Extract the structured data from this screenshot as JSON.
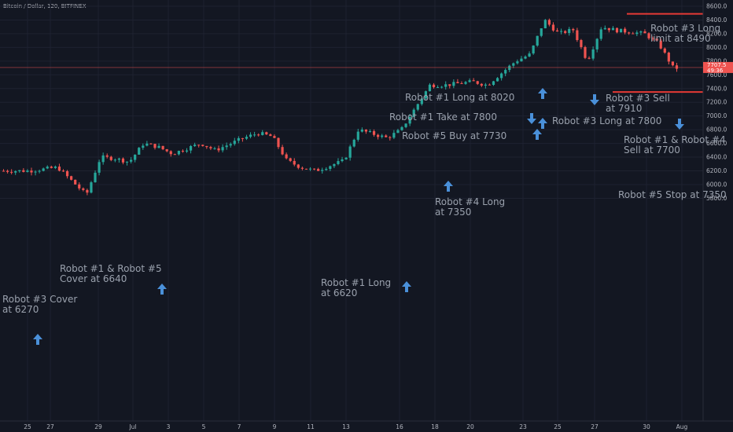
{
  "header": {
    "symbol_line": "Bitcoin / Dollar, 120, BITFINEX"
  },
  "price_axis": {
    "labels": [
      "8600.0",
      "8400.0",
      "8200.0",
      "8000.0",
      "7800.0",
      "7600.0",
      "7400.0",
      "7200.0",
      "7000.0",
      "6800.0",
      "6600.0",
      "6400.0",
      "6200.0",
      "6000.0",
      "5800.0"
    ],
    "current_price": "7707.5",
    "countdown": "49:36"
  },
  "time_axis": {
    "labels": [
      "25",
      "27",
      "29",
      "Jul",
      "3",
      "5",
      "7",
      "9",
      "11",
      "13",
      "16",
      "18",
      "20",
      "23",
      "25",
      "27",
      "30",
      "Aug"
    ]
  },
  "annotations": {
    "a1": "Robot #3 Long\nlimit at 8490",
    "a2": "Robot #1 Long at 8020",
    "a3": "Robot #3 Sell\nat 7910",
    "a4": "Robot #1 Take at 7800",
    "a5": "Robot #3 Long at 7800",
    "a6": "Robot #5 Buy at 7730",
    "a7": "Robot #1 & Robot #4\nSell at 7700",
    "a8": "Robot #4 Long\nat 7350",
    "a9": "Robot #5 Stop at 7350",
    "a10": "Robot #1 & Robot #5\nCover at 6640",
    "a11": "Robot #1 Long\nat 6620",
    "a12": "Robot #3 Cover\nat 6270"
  },
  "chart_data": {
    "type": "candlestick",
    "symbol": "Bitcoin / Dollar",
    "interval": "120",
    "exchange": "BITFINEX",
    "ylim": [
      5700,
      8650
    ],
    "current_price": 7707.5,
    "anchors": [
      [
        25,
        6200
      ],
      [
        27,
        6250
      ],
      [
        29,
        5850
      ],
      [
        30,
        6400
      ],
      [
        31,
        6380
      ],
      [
        32,
        6330
      ],
      [
        33,
        6600
      ],
      [
        34,
        6550
      ],
      [
        35,
        6450
      ],
      [
        37,
        6600
      ],
      [
        38,
        6500
      ],
      [
        40,
        6680
      ],
      [
        41,
        6750
      ],
      [
        42,
        6700
      ],
      [
        43,
        6350
      ],
      [
        44,
        6250
      ],
      [
        45,
        6200
      ],
      [
        47,
        6350
      ],
      [
        48,
        6800
      ],
      [
        50,
        6680
      ],
      [
        51,
        6800
      ],
      [
        53,
        7450
      ],
      [
        54,
        7450
      ],
      [
        56,
        7500
      ],
      [
        57,
        7450
      ],
      [
        59,
        7800
      ],
      [
        60,
        7900
      ],
      [
        61,
        8400
      ],
      [
        62,
        8200
      ],
      [
        63,
        8260
      ],
      [
        64,
        7800
      ],
      [
        65,
        8300
      ],
      [
        66,
        8250
      ],
      [
        68,
        8200
      ],
      [
        69,
        8050
      ],
      [
        70,
        7700
      ]
    ],
    "levels": [
      {
        "label": "Robot #3 Long limit at 8490",
        "price": 8490
      },
      {
        "label": "Robot #5 Stop at 7350",
        "price": 7350
      }
    ],
    "signals": [
      {
        "price": 6270,
        "dir": "up"
      },
      {
        "price": 6640,
        "dir": "up"
      },
      {
        "price": 6620,
        "dir": "up"
      },
      {
        "price": 7350,
        "dir": "up"
      },
      {
        "price": 7730,
        "dir": "up"
      },
      {
        "price": 7800,
        "dir": "down"
      },
      {
        "price": 7800,
        "dir": "up"
      },
      {
        "price": 8020,
        "dir": "up"
      },
      {
        "price": 7910,
        "dir": "down"
      },
      {
        "price": 7700,
        "dir": "down"
      }
    ]
  }
}
